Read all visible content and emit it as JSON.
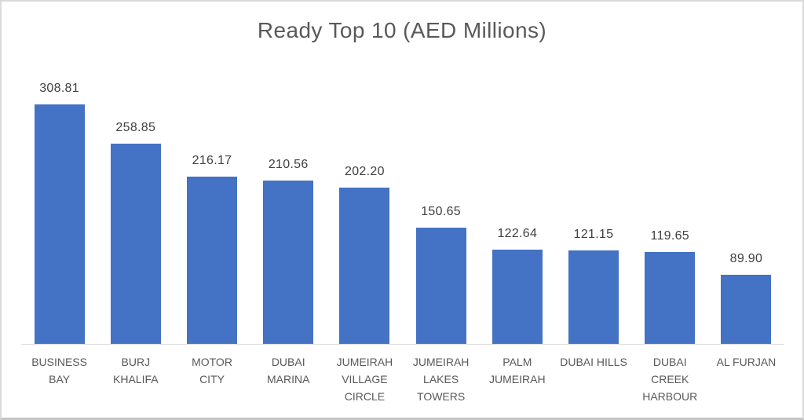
{
  "chart_data": {
    "type": "bar",
    "title": "Ready Top 10 (AED Millions)",
    "categories": [
      "BUSINESS BAY",
      "BURJ KHALIFA",
      "MOTOR CITY",
      "DUBAI MARINA",
      "JUMEIRAH VILLAGE CIRCLE",
      "JUMEIRAH LAKES TOWERS",
      "PALM JUMEIRAH",
      "DUBAI HILLS",
      "DUBAI CREEK HARBOUR",
      "AL FURJAN"
    ],
    "values": [
      308.81,
      258.85,
      216.17,
      210.56,
      202.2,
      150.65,
      122.64,
      121.15,
      119.65,
      89.9
    ],
    "data_labels": [
      "308.81",
      "258.85",
      "216.17",
      "210.56",
      "202.20",
      "150.65",
      "122.64",
      "121.15",
      "119.65",
      "89.90"
    ],
    "tick_label_lines": [
      [
        "BUSINESS",
        "BAY"
      ],
      [
        "BURJ",
        "KHALIFA"
      ],
      [
        "MOTOR",
        "CITY"
      ],
      [
        "DUBAI",
        "MARINA"
      ],
      [
        "JUMEIRAH",
        "VILLAGE",
        "CIRCLE"
      ],
      [
        "JUMEIRAH",
        "LAKES",
        "TOWERS"
      ],
      [
        "PALM",
        "JUMEIRAH"
      ],
      [
        "DUBAI HILLS"
      ],
      [
        "DUBAI",
        "CREEK",
        "HARBOUR"
      ],
      [
        "AL FURJAN"
      ]
    ],
    "xlabel": "",
    "ylabel": "",
    "ylim": [
      0,
      350
    ],
    "grid": false,
    "legend": false,
    "bar_color": "#4472C4",
    "axis_line_color": "#d9d9d9",
    "title_color": "#595959",
    "label_color": "#404040"
  }
}
